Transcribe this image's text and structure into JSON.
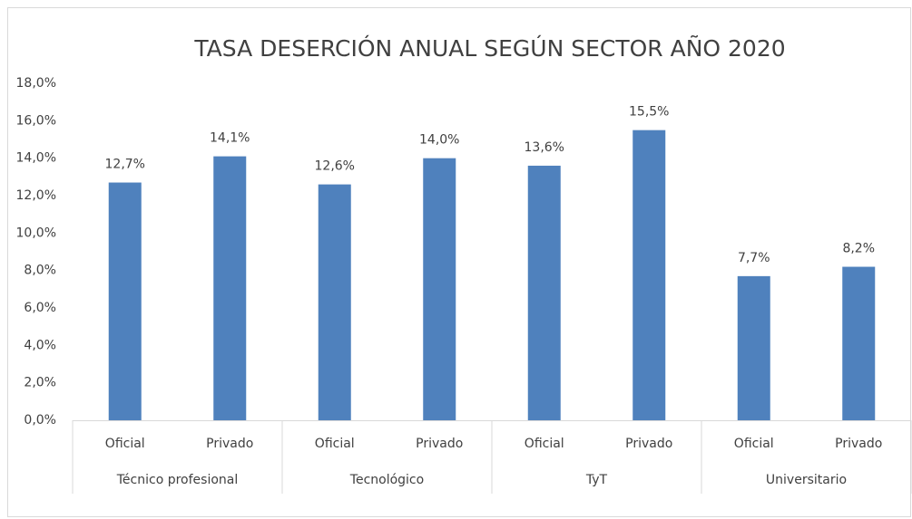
{
  "chart_data": {
    "type": "bar",
    "title": "TASA DESERCIÓN ANUAL SEGÚN SECTOR AÑO 2020",
    "categories": [
      "Oficial",
      "Privado",
      "Oficial",
      "Privado",
      "Oficial",
      "Privado",
      "Oficial",
      "Privado"
    ],
    "groups": [
      "Técnico profesional",
      "Tecnológico",
      "TyT",
      "Universitario"
    ],
    "values": [
      12.7,
      14.1,
      12.6,
      14.0,
      13.6,
      15.5,
      7.7,
      8.2
    ],
    "value_labels": [
      "12,7%",
      "14,1%",
      "12,6%",
      "14,0%",
      "13,6%",
      "15,5%",
      "7,7%",
      "8,2%"
    ],
    "color": "#4f81bd",
    "ylim": [
      0,
      18
    ],
    "yticks": [
      {
        "value": 0,
        "label": "0,0%"
      },
      {
        "value": 2,
        "label": "2,0%"
      },
      {
        "value": 4,
        "label": "4,0%"
      },
      {
        "value": 6,
        "label": "6,0%"
      },
      {
        "value": 8,
        "label": "8,0%"
      },
      {
        "value": 10,
        "label": "10,0%"
      },
      {
        "value": 12,
        "label": "12,0%"
      },
      {
        "value": 14,
        "label": "14,0%"
      },
      {
        "value": 16,
        "label": "16,0%"
      },
      {
        "value": 18,
        "label": "18,0%"
      }
    ],
    "grid": false
  }
}
